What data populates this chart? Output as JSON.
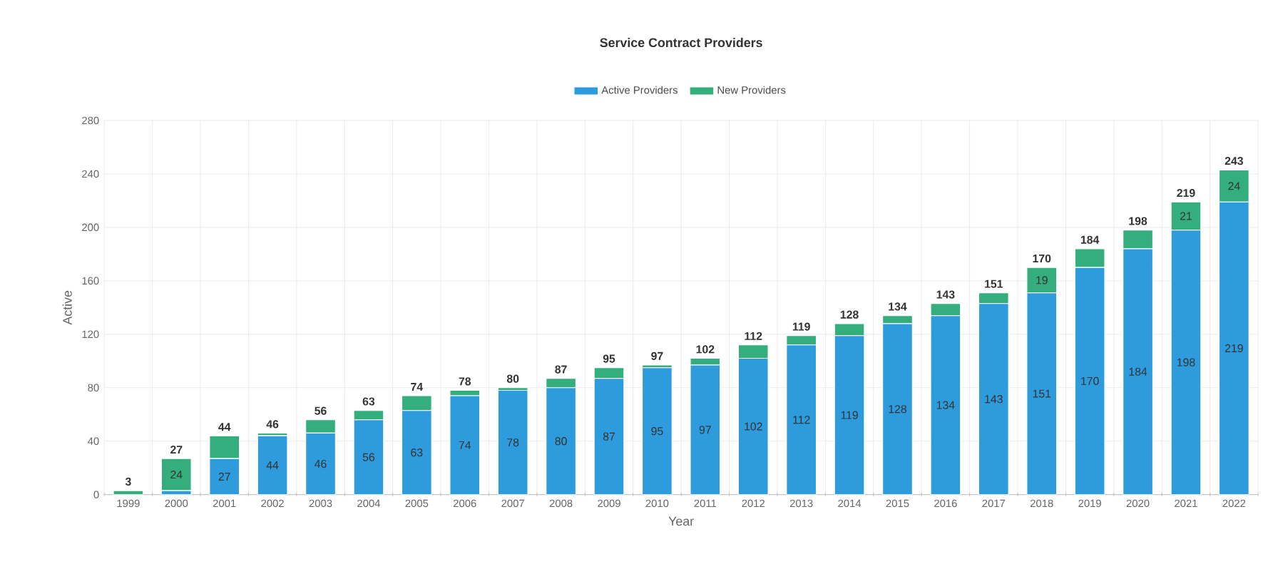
{
  "chart_data": {
    "type": "bar",
    "title": "Service Contract Providers",
    "xlabel": "Year",
    "ylabel": "Active",
    "categories": [
      "1999",
      "2000",
      "2001",
      "2002",
      "2003",
      "2004",
      "2005",
      "2006",
      "2007",
      "2008",
      "2009",
      "2010",
      "2011",
      "2012",
      "2013",
      "2014",
      "2015",
      "2016",
      "2017",
      "2018",
      "2019",
      "2020",
      "2021",
      "2022"
    ],
    "stacked": true,
    "series": [
      {
        "name": "Active Providers",
        "color": "#2e9bdc",
        "values": [
          0,
          3,
          27,
          44,
          46,
          56,
          63,
          74,
          78,
          80,
          87,
          95,
          97,
          102,
          112,
          119,
          128,
          134,
          143,
          151,
          170,
          184,
          198,
          219
        ],
        "value_labels": [
          null,
          null,
          "27",
          "44",
          "46",
          "56",
          "63",
          "74",
          "78",
          "80",
          "87",
          "95",
          "97",
          "102",
          "112",
          "119",
          "128",
          "134",
          "143",
          "151",
          "170",
          "184",
          "198",
          "219"
        ]
      },
      {
        "name": "New Providers",
        "color": "#35ae7e",
        "values": [
          3,
          24,
          17,
          2,
          10,
          7,
          11,
          4,
          2,
          7,
          8,
          2,
          5,
          10,
          7,
          9,
          6,
          9,
          8,
          19,
          14,
          14,
          21,
          24
        ],
        "value_labels": [
          null,
          "24",
          null,
          null,
          null,
          null,
          null,
          null,
          null,
          null,
          null,
          null,
          null,
          null,
          null,
          null,
          null,
          null,
          null,
          "19",
          null,
          null,
          "21",
          "24"
        ]
      }
    ],
    "totals": [
      "3",
      "27",
      "44",
      "46",
      "56",
      "63",
      "74",
      "78",
      "80",
      "87",
      "95",
      "97",
      "102",
      "112",
      "119",
      "128",
      "134",
      "143",
      "151",
      "170",
      "184",
      "198",
      "219",
      "243"
    ],
    "ylim": [
      0,
      280
    ],
    "yticks": [
      0,
      40,
      80,
      120,
      160,
      200,
      240,
      280
    ],
    "grid": true,
    "legend": "top"
  }
}
